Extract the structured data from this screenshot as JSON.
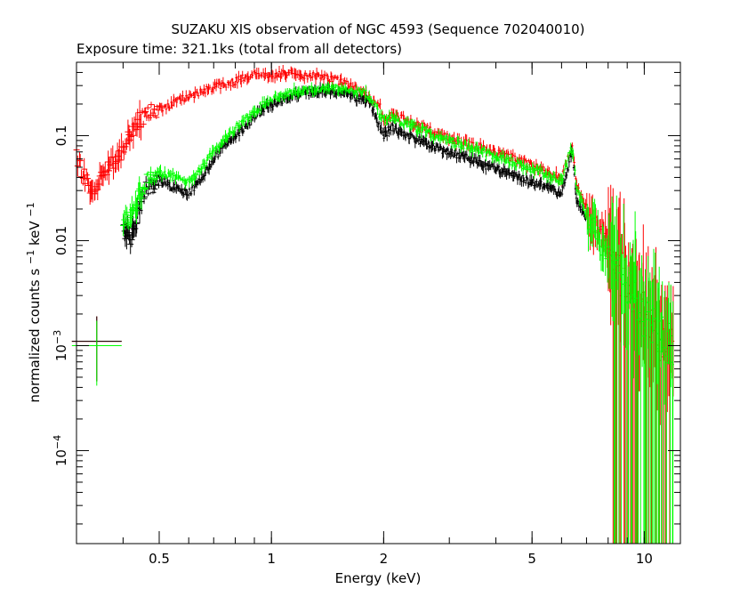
{
  "chart_data": {
    "type": "scatter",
    "title": "SUZAKU XIS observation of NGC 4593 (Sequence 702040010)",
    "subtitle": "Exposure time: 321.1ks (total from all detectors)",
    "xlabel": "Energy (keV)",
    "ylabel": "normalized counts s",
    "ylabel_sup1": "−1",
    "ylabel_mid": " keV",
    "ylabel_sup2": "−1",
    "x_scale": "log",
    "y_scale": "log",
    "xlim": [
      0.3,
      12.5
    ],
    "ylim": [
      1.3e-05,
      0.5
    ],
    "x_ticks": [
      {
        "value": 0.5,
        "label": "0.5"
      },
      {
        "value": 1,
        "label": "1"
      },
      {
        "value": 2,
        "label": "2"
      },
      {
        "value": 5,
        "label": "5"
      },
      {
        "value": 10,
        "label": "10"
      }
    ],
    "y_ticks": [
      {
        "value": 0.1,
        "label": "0.1",
        "mant": "",
        "exp": ""
      },
      {
        "value": 0.01,
        "label": "0.01",
        "mant": "",
        "exp": ""
      },
      {
        "value": 0.001,
        "label": "",
        "mant": "10",
        "exp": "−3"
      },
      {
        "value": 0.0001,
        "label": "",
        "mant": "10",
        "exp": "−4"
      }
    ],
    "grid": false,
    "legend": "none",
    "series": [
      {
        "color": "#ff0000",
        "points": [
          [
            0.3,
            0.065
          ],
          [
            0.31,
            0.047
          ],
          [
            0.32,
            0.035
          ],
          [
            0.33,
            0.028
          ],
          [
            0.35,
            0.042
          ],
          [
            0.37,
            0.055
          ],
          [
            0.39,
            0.065
          ],
          [
            0.41,
            0.09
          ],
          [
            0.43,
            0.12
          ],
          [
            0.45,
            0.15
          ],
          [
            0.48,
            0.17
          ],
          [
            0.52,
            0.19
          ],
          [
            0.56,
            0.21
          ],
          [
            0.6,
            0.24
          ],
          [
            0.65,
            0.26
          ],
          [
            0.7,
            0.29
          ],
          [
            0.75,
            0.31
          ],
          [
            0.8,
            0.33
          ],
          [
            0.85,
            0.36
          ],
          [
            0.9,
            0.38
          ],
          [
            0.95,
            0.37
          ],
          [
            1.0,
            0.38
          ],
          [
            1.1,
            0.39
          ],
          [
            1.2,
            0.38
          ],
          [
            1.3,
            0.37
          ],
          [
            1.4,
            0.36
          ],
          [
            1.5,
            0.34
          ],
          [
            1.6,
            0.31
          ],
          [
            1.7,
            0.28
          ],
          [
            1.8,
            0.25
          ],
          [
            1.85,
            0.22
          ],
          [
            1.95,
            0.2
          ],
          [
            2.0,
            0.14
          ],
          [
            2.1,
            0.16
          ],
          [
            2.2,
            0.15
          ],
          [
            2.4,
            0.13
          ],
          [
            2.6,
            0.12
          ],
          [
            2.8,
            0.1
          ],
          [
            3.0,
            0.095
          ],
          [
            3.3,
            0.085
          ],
          [
            3.6,
            0.078
          ],
          [
            4.0,
            0.068
          ],
          [
            4.5,
            0.06
          ],
          [
            5.0,
            0.052
          ],
          [
            5.5,
            0.045
          ],
          [
            6.0,
            0.04
          ],
          [
            6.4,
            0.085
          ],
          [
            6.6,
            0.033
          ],
          [
            7.0,
            0.02
          ],
          [
            7.5,
            0.012
          ],
          [
            8.0,
            0.008
          ],
          [
            8.5,
            0.0055
          ],
          [
            9.0,
            0.004
          ],
          [
            9.5,
            0.0028
          ],
          [
            10.0,
            0.002
          ],
          [
            10.5,
            0.0015
          ],
          [
            11.0,
            0.0012
          ],
          [
            11.5,
            0.001
          ],
          [
            12.0,
            0.0008
          ]
        ],
        "lone_points": [
          [
            0.34,
            0.0011
          ]
        ]
      },
      {
        "color": "#000000",
        "points": [
          [
            0.4,
            0.012
          ],
          [
            0.42,
            0.011
          ],
          [
            0.44,
            0.02
          ],
          [
            0.46,
            0.03
          ],
          [
            0.5,
            0.038
          ],
          [
            0.55,
            0.032
          ],
          [
            0.6,
            0.028
          ],
          [
            0.65,
            0.04
          ],
          [
            0.7,
            0.06
          ],
          [
            0.75,
            0.08
          ],
          [
            0.8,
            0.1
          ],
          [
            0.85,
            0.12
          ],
          [
            0.9,
            0.15
          ],
          [
            0.95,
            0.18
          ],
          [
            1.0,
            0.2
          ],
          [
            1.1,
            0.23
          ],
          [
            1.2,
            0.25
          ],
          [
            1.3,
            0.26
          ],
          [
            1.4,
            0.27
          ],
          [
            1.5,
            0.26
          ],
          [
            1.6,
            0.25
          ],
          [
            1.7,
            0.23
          ],
          [
            1.8,
            0.22
          ],
          [
            1.85,
            0.2
          ],
          [
            1.95,
            0.12
          ],
          [
            2.0,
            0.1
          ],
          [
            2.1,
            0.12
          ],
          [
            2.2,
            0.11
          ],
          [
            2.4,
            0.095
          ],
          [
            2.6,
            0.085
          ],
          [
            2.8,
            0.075
          ],
          [
            3.0,
            0.07
          ],
          [
            3.3,
            0.062
          ],
          [
            3.6,
            0.055
          ],
          [
            4.0,
            0.048
          ],
          [
            4.5,
            0.042
          ],
          [
            5.0,
            0.036
          ],
          [
            5.5,
            0.032
          ],
          [
            6.0,
            0.028
          ],
          [
            6.4,
            0.07
          ],
          [
            6.6,
            0.024
          ],
          [
            7.0,
            0.015
          ]
        ],
        "lone_points": [
          [
            0.34,
            0.0011
          ]
        ]
      },
      {
        "color": "#00ff00",
        "points": [
          [
            0.4,
            0.015
          ],
          [
            0.42,
            0.018
          ],
          [
            0.44,
            0.025
          ],
          [
            0.46,
            0.035
          ],
          [
            0.5,
            0.045
          ],
          [
            0.55,
            0.04
          ],
          [
            0.6,
            0.035
          ],
          [
            0.65,
            0.05
          ],
          [
            0.7,
            0.07
          ],
          [
            0.75,
            0.09
          ],
          [
            0.8,
            0.12
          ],
          [
            0.85,
            0.14
          ],
          [
            0.9,
            0.17
          ],
          [
            0.95,
            0.2
          ],
          [
            1.0,
            0.22
          ],
          [
            1.1,
            0.25
          ],
          [
            1.2,
            0.27
          ],
          [
            1.3,
            0.28
          ],
          [
            1.4,
            0.28
          ],
          [
            1.5,
            0.28
          ],
          [
            1.6,
            0.27
          ],
          [
            1.7,
            0.26
          ],
          [
            1.8,
            0.25
          ],
          [
            1.85,
            0.22
          ],
          [
            1.95,
            0.16
          ],
          [
            2.0,
            0.14
          ],
          [
            2.1,
            0.15
          ],
          [
            2.2,
            0.14
          ],
          [
            2.4,
            0.12
          ],
          [
            2.6,
            0.11
          ],
          [
            2.8,
            0.095
          ],
          [
            3.0,
            0.09
          ],
          [
            3.3,
            0.08
          ],
          [
            3.6,
            0.072
          ],
          [
            4.0,
            0.063
          ],
          [
            4.5,
            0.055
          ],
          [
            5.0,
            0.048
          ],
          [
            5.5,
            0.042
          ],
          [
            6.0,
            0.037
          ],
          [
            6.4,
            0.08
          ],
          [
            6.6,
            0.03
          ],
          [
            7.0,
            0.018
          ],
          [
            7.5,
            0.011
          ],
          [
            8.0,
            0.007
          ],
          [
            8.5,
            0.005
          ],
          [
            9.0,
            0.0038
          ],
          [
            9.5,
            0.0027
          ],
          [
            10.0,
            0.002
          ],
          [
            10.5,
            0.0016
          ],
          [
            11.0,
            0.0013
          ],
          [
            11.5,
            0.0011
          ],
          [
            12.0,
            0.0009
          ]
        ],
        "lone_points": [
          [
            0.34,
            0.001
          ]
        ]
      }
    ]
  }
}
